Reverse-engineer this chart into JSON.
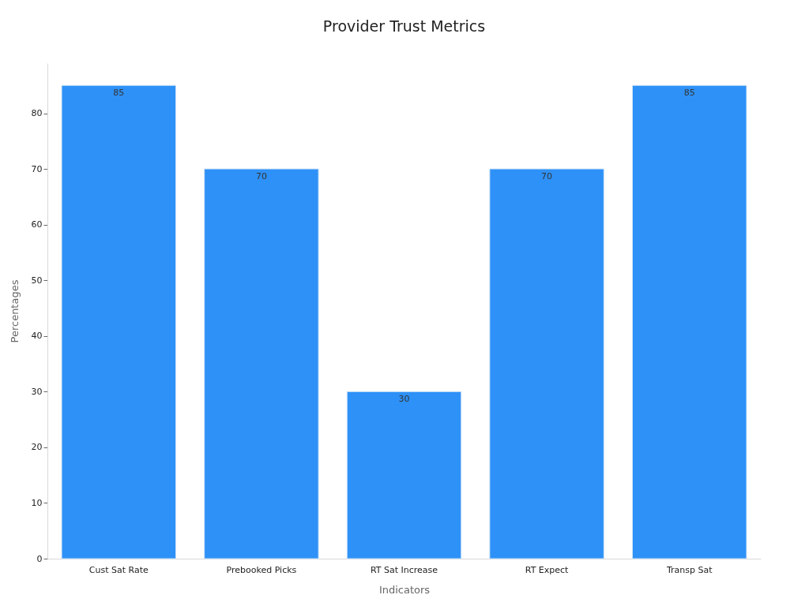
{
  "chart_data": {
    "type": "bar",
    "title": "Provider Trust Metrics",
    "xlabel": "Indicators",
    "ylabel": "Percentages",
    "categories": [
      "Cust Sat Rate",
      "Prebooked Picks",
      "RT Sat Increase",
      "RT Expect",
      "Transp Sat"
    ],
    "values": [
      85,
      70,
      30,
      70,
      85
    ],
    "color": "#2e91f7",
    "ylim": [
      0,
      89
    ],
    "yticks": [
      0,
      10,
      20,
      30,
      40,
      50,
      60,
      70,
      80
    ],
    "grid": false,
    "data_labels": true
  }
}
